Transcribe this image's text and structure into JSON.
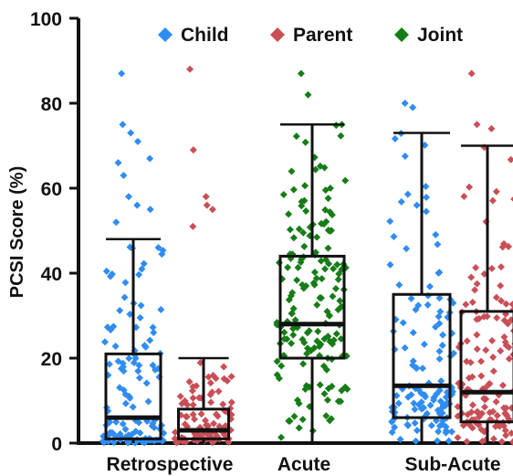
{
  "chart_data": {
    "type": "box",
    "title": "",
    "ylabel": "PCSI Score (%)",
    "xlabel": "",
    "ylim": [
      0,
      100
    ],
    "yticks": [
      0,
      20,
      40,
      60,
      80,
      100
    ],
    "grid": false,
    "legend_position": "top",
    "legend": [
      {
        "name": "Child",
        "color": "#2f8cf2"
      },
      {
        "name": "Parent",
        "color": "#c94f57"
      },
      {
        "name": "Joint",
        "color": "#167d16"
      }
    ],
    "categories": [
      "Retrospective",
      "Acute",
      "Sub-Acute"
    ],
    "boxes": [
      {
        "category": "Retrospective",
        "series": "Child",
        "whisker_low": 0,
        "q1": 1,
        "median": 6,
        "q3": 21,
        "whisker_high": 48
      },
      {
        "category": "Retrospective",
        "series": "Parent",
        "whisker_low": 0,
        "q1": 1,
        "median": 3,
        "q3": 8,
        "whisker_high": 20
      },
      {
        "category": "Acute",
        "series": "Joint",
        "whisker_low": 0,
        "q1": 20,
        "median": 28,
        "q3": 44,
        "whisker_high": 75
      },
      {
        "category": "Sub-Acute",
        "series": "Child",
        "whisker_low": 0,
        "q1": 6,
        "median": 13.5,
        "q3": 35,
        "whisker_high": 73
      },
      {
        "category": "Sub-Acute",
        "series": "Parent",
        "whisker_low": 0,
        "q1": 5,
        "median": 12,
        "q3": 31,
        "whisker_high": 70
      }
    ],
    "outliers": [
      {
        "category": "Retrospective",
        "series": "Child",
        "values": [
          87,
          75,
          73,
          71,
          67,
          66,
          63,
          58,
          56,
          55,
          52
        ]
      },
      {
        "category": "Retrospective",
        "series": "Parent",
        "values": [
          88,
          69,
          58,
          56,
          55,
          51
        ]
      },
      {
        "category": "Acute",
        "series": "Joint",
        "values": [
          87,
          82
        ]
      },
      {
        "category": "Sub-Acute",
        "series": "Child",
        "values": [
          80,
          79
        ]
      },
      {
        "category": "Sub-Acute",
        "series": "Parent",
        "values": [
          87,
          75,
          74
        ]
      }
    ]
  }
}
